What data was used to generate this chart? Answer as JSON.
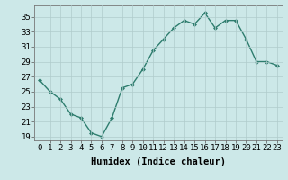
{
  "x": [
    0,
    1,
    2,
    3,
    4,
    5,
    6,
    7,
    8,
    9,
    10,
    11,
    12,
    13,
    14,
    15,
    16,
    17,
    18,
    19,
    20,
    21,
    22,
    23
  ],
  "y": [
    26.5,
    25.0,
    24.0,
    22.0,
    21.5,
    19.5,
    19.0,
    21.5,
    25.5,
    26.0,
    28.0,
    30.5,
    32.0,
    33.5,
    34.5,
    34.0,
    35.5,
    33.5,
    34.5,
    34.5,
    32.0,
    29.0,
    29.0,
    28.5
  ],
  "line_color": "#2e7d6e",
  "marker": "D",
  "marker_size": 2.0,
  "bg_color": "#cce8e8",
  "grid_color": "#b0cccc",
  "tick_color": "#000000",
  "xlabel": "Humidex (Indice chaleur)",
  "ylim": [
    18.5,
    36.5
  ],
  "xlim": [
    -0.5,
    23.5
  ],
  "yticks": [
    19,
    21,
    23,
    25,
    27,
    29,
    31,
    33,
    35
  ],
  "xticks": [
    0,
    1,
    2,
    3,
    4,
    5,
    6,
    7,
    8,
    9,
    10,
    11,
    12,
    13,
    14,
    15,
    16,
    17,
    18,
    19,
    20,
    21,
    22,
    23
  ],
  "xlabel_fontsize": 7.5,
  "tick_fontsize": 6.5,
  "linewidth": 1.0
}
